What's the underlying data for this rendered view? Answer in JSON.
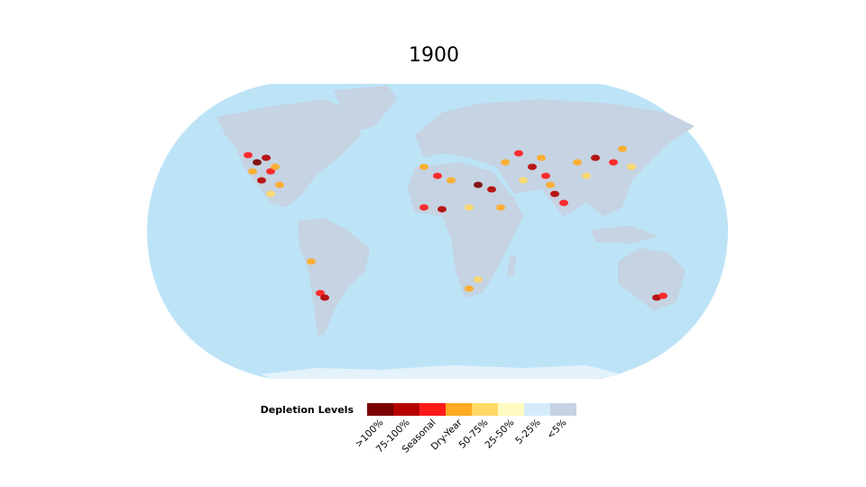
{
  "title": "1900",
  "legend": {
    "title": "Depletion Levels",
    "items": [
      {
        "label": ">100%",
        "color": "#7a0000"
      },
      {
        "label": "75-100%",
        "color": "#b50000"
      },
      {
        "label": "Seasonal",
        "color": "#ff1a1a"
      },
      {
        "label": "Dry-Year",
        "color": "#ffaa22"
      },
      {
        "label": "50-75%",
        "color": "#ffd966"
      },
      {
        "label": "25-50%",
        "color": "#fffbc0"
      },
      {
        "label": "5-25%",
        "color": "#d4ecfa"
      },
      {
        "label": "<5%",
        "color": "#c5d3e2"
      }
    ]
  }
}
